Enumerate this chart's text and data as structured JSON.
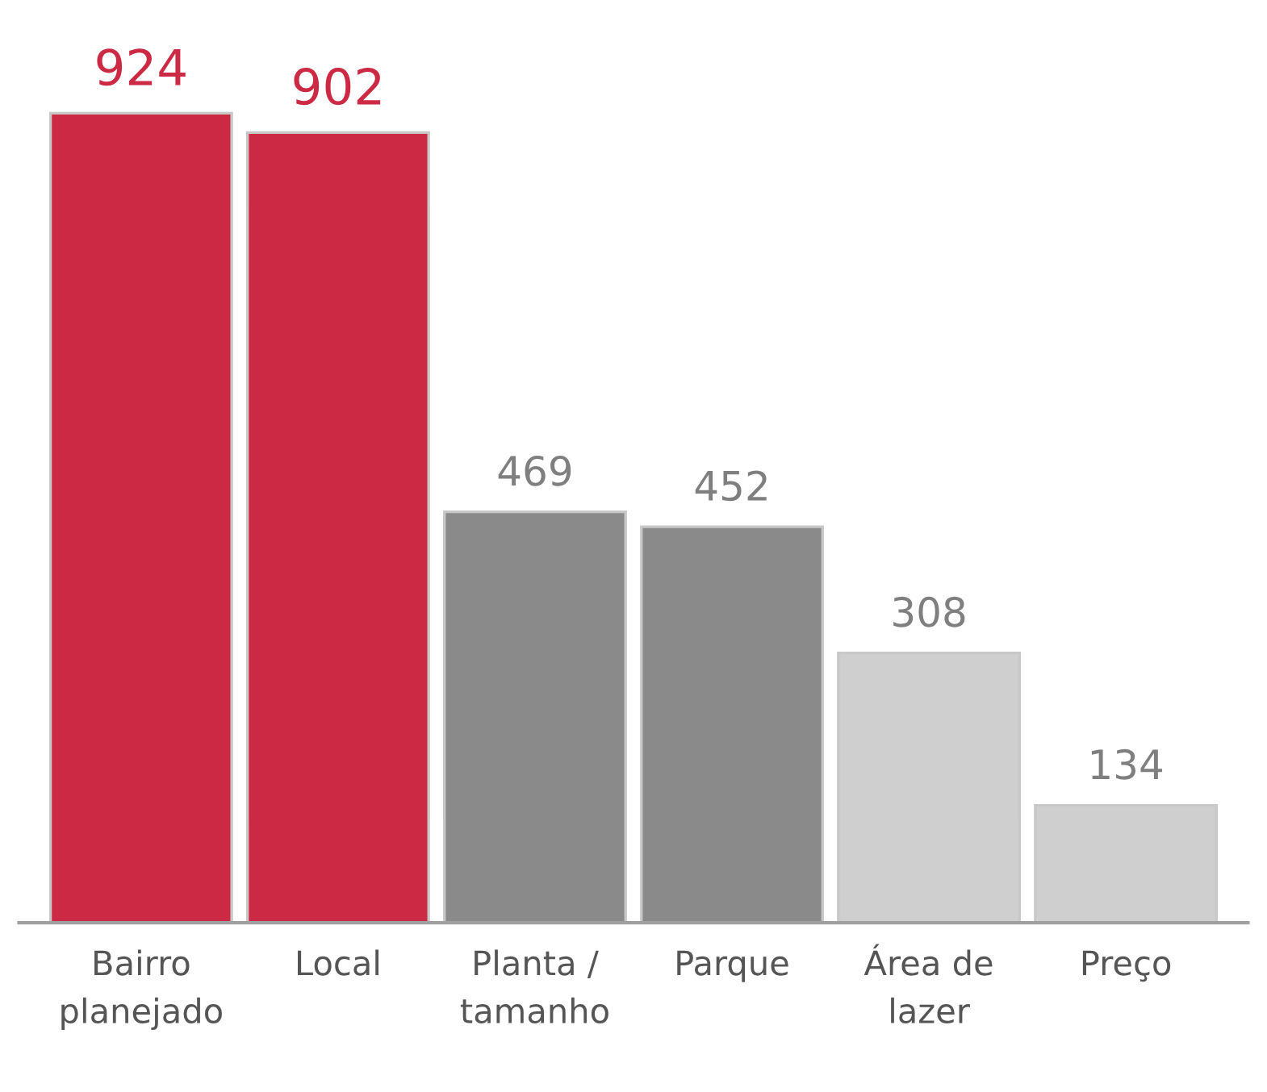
{
  "chart_data": {
    "type": "bar",
    "categories": [
      "Bairro\nplanejado",
      "Local",
      "Planta /\ntamanho",
      "Parque",
      "Área de\nlazer",
      "Preço"
    ],
    "values": [
      924,
      902,
      469,
      452,
      308,
      134
    ],
    "colors": [
      "#cc2944",
      "#cc2944",
      "#8a8a8a",
      "#8a8a8a",
      "#cfcfcf",
      "#cfcfcf"
    ],
    "data_labels": true,
    "grid": false,
    "legend": false
  }
}
